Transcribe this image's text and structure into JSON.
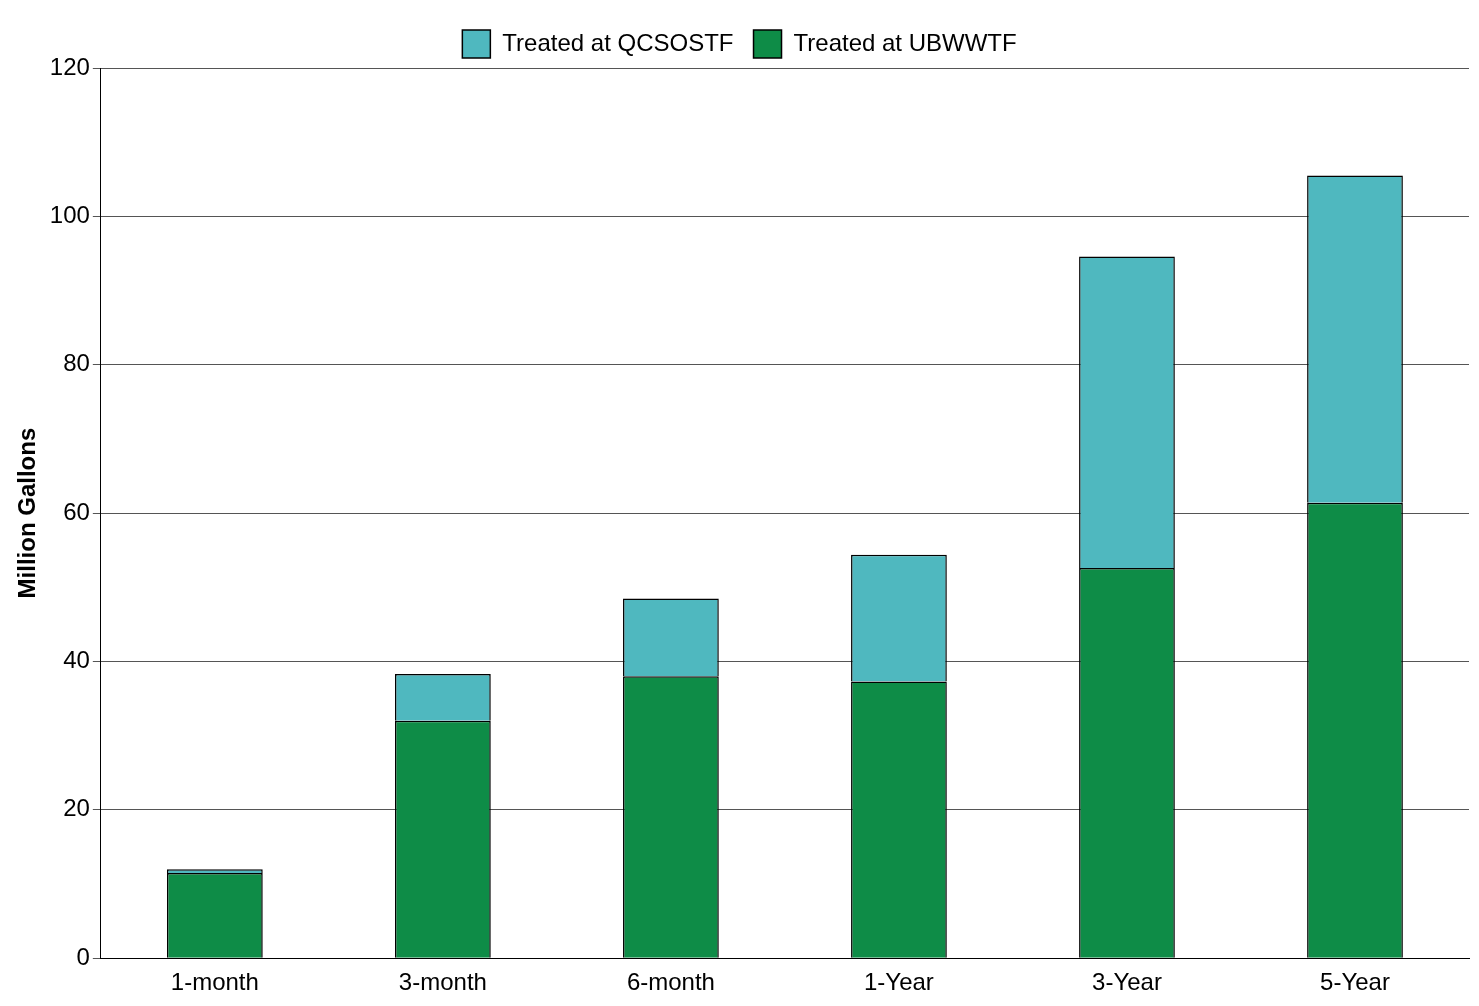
{
  "chart_data": {
    "type": "bar",
    "ylabel": "Million Gallons",
    "categories": [
      "1-month",
      "3-month",
      "6-month",
      "1-Year",
      "3-Year",
      "5-Year"
    ],
    "series": [
      {
        "name": "Treated at UBWWTF",
        "color": "#0e8c47",
        "values": [
          11.5,
          32,
          38,
          37.3,
          52.6,
          61.4
        ]
      },
      {
        "name": "Treated at QCSOSTF",
        "color": "#4fb8bf",
        "values": [
          0.5,
          6.3,
          10.5,
          17.1,
          42,
          44.1
        ]
      }
    ],
    "stacked": true,
    "ylim": [
      0,
      120
    ],
    "yticks": [
      0,
      20,
      40,
      60,
      80,
      100,
      120
    ],
    "grid": "y",
    "legend": "top"
  }
}
